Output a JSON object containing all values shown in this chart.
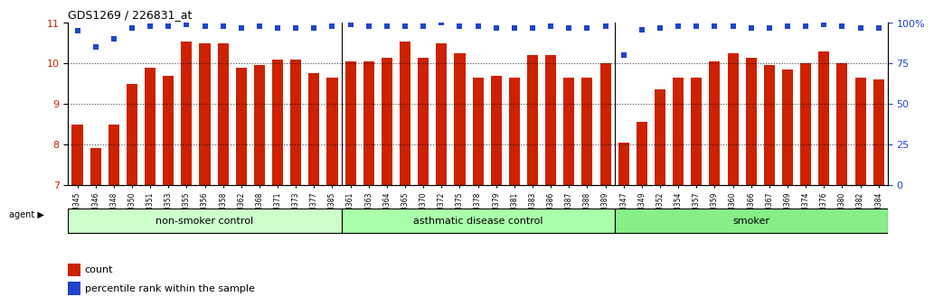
{
  "title": "GDS1269 / 226831_at",
  "categories": [
    "GSM38345",
    "GSM38346",
    "GSM38348",
    "GSM38350",
    "GSM38351",
    "GSM38353",
    "GSM38355",
    "GSM38356",
    "GSM38358",
    "GSM38362",
    "GSM38368",
    "GSM38371",
    "GSM38373",
    "GSM38377",
    "GSM38385",
    "GSM38361",
    "GSM38363",
    "GSM38364",
    "GSM38365",
    "GSM38370",
    "GSM38372",
    "GSM38375",
    "GSM38378",
    "GSM38379",
    "GSM38381",
    "GSM38383",
    "GSM38386",
    "GSM38387",
    "GSM38388",
    "GSM38389",
    "GSM38347",
    "GSM38349",
    "GSM38352",
    "GSM38354",
    "GSM38357",
    "GSM38359",
    "GSM38360",
    "GSM38366",
    "GSM38367",
    "GSM38369",
    "GSM38374",
    "GSM38376",
    "GSM38380",
    "GSM38382",
    "GSM38384"
  ],
  "bar_values": [
    8.5,
    7.9,
    8.5,
    9.5,
    9.9,
    9.7,
    10.55,
    10.5,
    10.5,
    9.9,
    9.95,
    10.1,
    10.1,
    9.75,
    9.65,
    10.05,
    10.05,
    10.15,
    10.55,
    10.15,
    10.5,
    10.25,
    9.65,
    9.7,
    9.65,
    10.2,
    10.2,
    9.65,
    9.65,
    10.0,
    8.05,
    8.55,
    9.35,
    9.65,
    9.65,
    10.05,
    10.25,
    10.15,
    9.95,
    9.85,
    10.0,
    10.3,
    10.0,
    9.65,
    9.6
  ],
  "percentile_values": [
    10.3,
    10.1,
    10.3,
    10.6,
    10.65,
    10.65,
    10.75,
    10.7,
    10.7,
    10.65,
    10.7,
    10.65,
    10.65,
    10.65,
    10.7,
    10.8,
    10.7,
    10.75,
    10.75,
    10.75,
    10.85,
    10.7,
    10.7,
    10.65,
    10.65,
    10.65,
    10.7,
    10.65,
    10.65,
    10.7,
    10.2,
    10.6,
    10.65,
    10.7,
    10.7,
    10.7,
    10.7,
    10.65,
    10.65,
    10.7,
    10.7,
    10.75,
    10.7,
    10.65,
    10.65
  ],
  "groups": [
    {
      "label": "non-smoker control",
      "start": 0,
      "end": 15,
      "color": "#ccffcc"
    },
    {
      "label": "asthmatic disease control",
      "start": 15,
      "end": 30,
      "color": "#aaffaa"
    },
    {
      "label": "smoker",
      "start": 30,
      "end": 45,
      "color": "#88ee88"
    }
  ],
  "bar_color": "#cc2200",
  "percentile_color": "#2244cc",
  "ylim_left": [
    7,
    11
  ],
  "ylim_right": [
    0,
    100
  ],
  "yticks_left": [
    7,
    8,
    9,
    10,
    11
  ],
  "yticks_right": [
    0,
    25,
    50,
    75,
    100
  ],
  "ytick_labels_right": [
    "0",
    "25",
    "50",
    "75",
    "100%"
  ],
  "background_color": "#ffffff",
  "grid_color": "#000000"
}
